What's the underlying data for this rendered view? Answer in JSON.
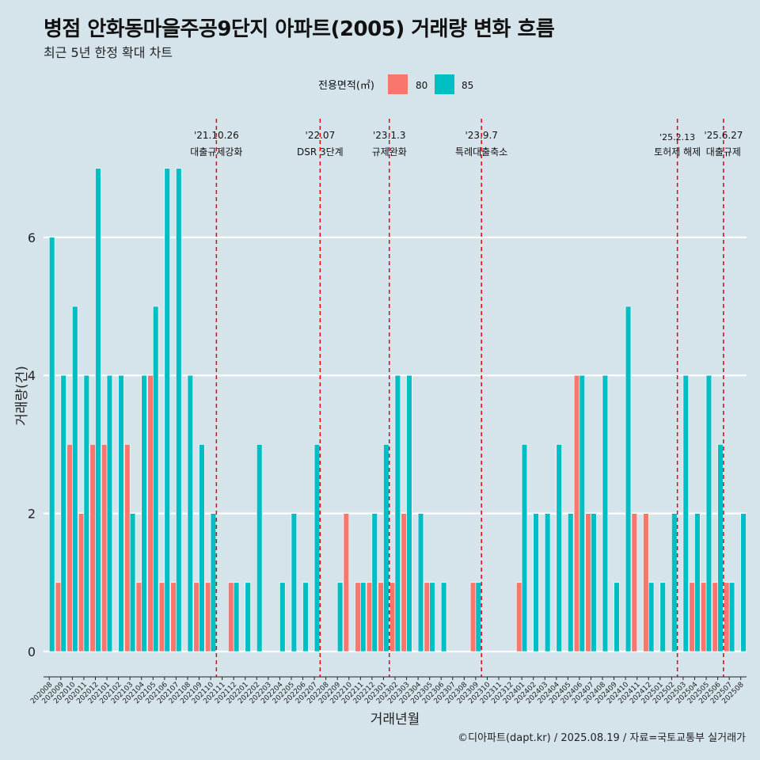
{
  "title": "병점 안화동마을주공9단지 아파트(2005) 거래량 변화 흐름",
  "subtitle": "최근 5년 한정 확대 차트",
  "caption": "©디아파트(dapt.kr) / 2025.08.19 / 자료=국토교통부 실거래가",
  "colors": {
    "s80": "#F8766D",
    "s85": "#00BFC4",
    "event_line": "#E8000B",
    "background": "#d5e4eb",
    "grid": "#ffffff"
  },
  "chart_data": {
    "type": "bar",
    "xlabel": "거래년월",
    "ylabel": "거래량(건)",
    "legend_title": "전용면적(㎡)",
    "legend_position": "top",
    "ylim": [
      0,
      7.5
    ],
    "yticks": [
      0,
      2,
      4,
      6
    ],
    "grid": true,
    "categories": [
      "202008",
      "202009",
      "202010",
      "202011",
      "202012",
      "202101",
      "202102",
      "202103",
      "202104",
      "202105",
      "202106",
      "202107",
      "202108",
      "202109",
      "202110",
      "202111",
      "202112",
      "202201",
      "202202",
      "202203",
      "202204",
      "202205",
      "202206",
      "202207",
      "202208",
      "202209",
      "202210",
      "202211",
      "202212",
      "202301",
      "202302",
      "202303",
      "202304",
      "202305",
      "202306",
      "202307",
      "202308",
      "202309",
      "202310",
      "202311",
      "202312",
      "202401",
      "202402",
      "202403",
      "202404",
      "202405",
      "202406",
      "202407",
      "202408",
      "202409",
      "202410",
      "202411",
      "202412",
      "202501",
      "202502",
      "202503",
      "202504",
      "202505",
      "202506",
      "202507",
      "202508"
    ],
    "series": [
      {
        "name": "80",
        "values": [
          0,
          1,
          3,
          2,
          3,
          3,
          0,
          3,
          1,
          4,
          1,
          1,
          0,
          1,
          1,
          0,
          1,
          0,
          0,
          0,
          0,
          0,
          0,
          0,
          0,
          0,
          2,
          1,
          1,
          1,
          1,
          2,
          0,
          1,
          0,
          0,
          0,
          1,
          0,
          0,
          0,
          1,
          0,
          0,
          0,
          0,
          4,
          2,
          0,
          0,
          0,
          2,
          2,
          0,
          0,
          0,
          1,
          1,
          1,
          1,
          0
        ]
      },
      {
        "name": "85",
        "values": [
          6,
          4,
          5,
          4,
          7,
          4,
          4,
          2,
          4,
          5,
          7,
          7,
          4,
          3,
          2,
          0,
          1,
          1,
          3,
          0,
          1,
          2,
          1,
          3,
          0,
          1,
          0,
          1,
          2,
          3,
          4,
          4,
          2,
          1,
          1,
          0,
          0,
          1,
          0,
          0,
          0,
          3,
          2,
          2,
          3,
          2,
          4,
          2,
          4,
          1,
          5,
          0,
          1,
          1,
          2,
          4,
          2,
          4,
          3,
          1,
          2
        ]
      }
    ],
    "events": [
      {
        "date": "'21.10.26",
        "label": "대출규제강화",
        "after": "202110"
      },
      {
        "date": "'22.07",
        "label": "DSR 3단계",
        "after": "202207"
      },
      {
        "date": "'23.1.3",
        "label": "규제완화",
        "after": "202301"
      },
      {
        "date": "'23.9.7",
        "label": "특례대출축소",
        "after": "202309"
      },
      {
        "date": "'25.2.13",
        "label": "토허제 해제",
        "after": "202502"
      },
      {
        "date": "'25.6.27",
        "label": "대출규제",
        "after": "202506"
      }
    ]
  }
}
